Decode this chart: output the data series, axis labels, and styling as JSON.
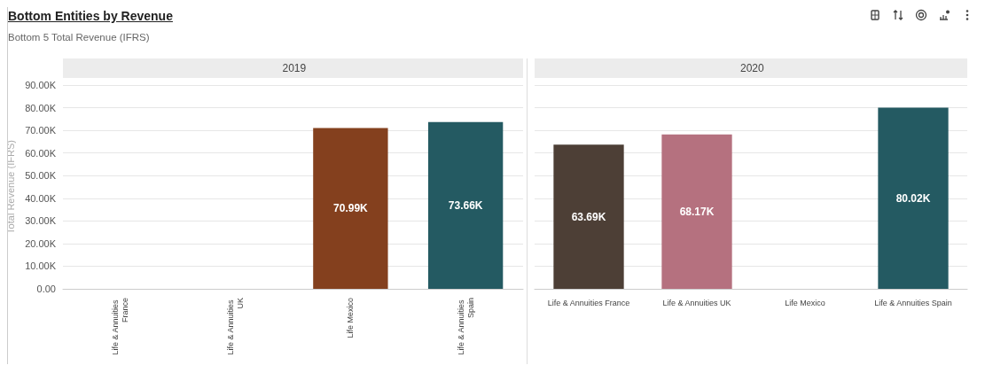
{
  "chart_data": [
    {
      "type": "bar",
      "title": "Bottom Entities by Revenue",
      "subtitle": "Bottom 5 Total Revenue (IFRS)",
      "ylabel": "Total Revenue (IFRS)",
      "annotations": [
        "2019"
      ],
      "categories": [
        "Life & Annuities France",
        "Life & Annuities UK",
        "Life Mexico",
        "Life & Annuities Spain"
      ],
      "values": [
        null,
        null,
        70990,
        73660
      ],
      "colors": [
        "#4d3f36",
        "#b5717f",
        "#84401e",
        "#245a62"
      ],
      "value_labels": [
        null,
        null,
        "70.99K",
        "73.66K"
      ],
      "ylim": [
        0,
        90000
      ],
      "yticks": [
        {
          "value": 0,
          "label": "0.00"
        },
        {
          "value": 10000,
          "label": "10.00K"
        },
        {
          "value": 20000,
          "label": "20.00K"
        },
        {
          "value": 30000,
          "label": "30.00K"
        },
        {
          "value": 40000,
          "label": "40.00K"
        },
        {
          "value": 50000,
          "label": "50.00K"
        },
        {
          "value": 60000,
          "label": "60.00K"
        },
        {
          "value": 70000,
          "label": "70.00K"
        },
        {
          "value": 80000,
          "label": "80.00K"
        },
        {
          "value": 90000,
          "label": "90.00K"
        }
      ],
      "grid": "y"
    },
    {
      "type": "bar",
      "annotations": [
        "2020"
      ],
      "tick_labels": "x",
      "categories": [
        "Life & Annuities France",
        "Life & Annuities UK",
        "Life Mexico",
        "Life & Annuities Spain"
      ],
      "values": [
        63690,
        68170,
        null,
        80020
      ],
      "colors": [
        "#4d3f36",
        "#b5717f",
        "#84401e",
        "#245a62"
      ],
      "value_labels": [
        "63.69K",
        "68.17K",
        null,
        "80.02K"
      ],
      "ylim": [
        0,
        90000
      ],
      "grid": "y"
    }
  ]
}
